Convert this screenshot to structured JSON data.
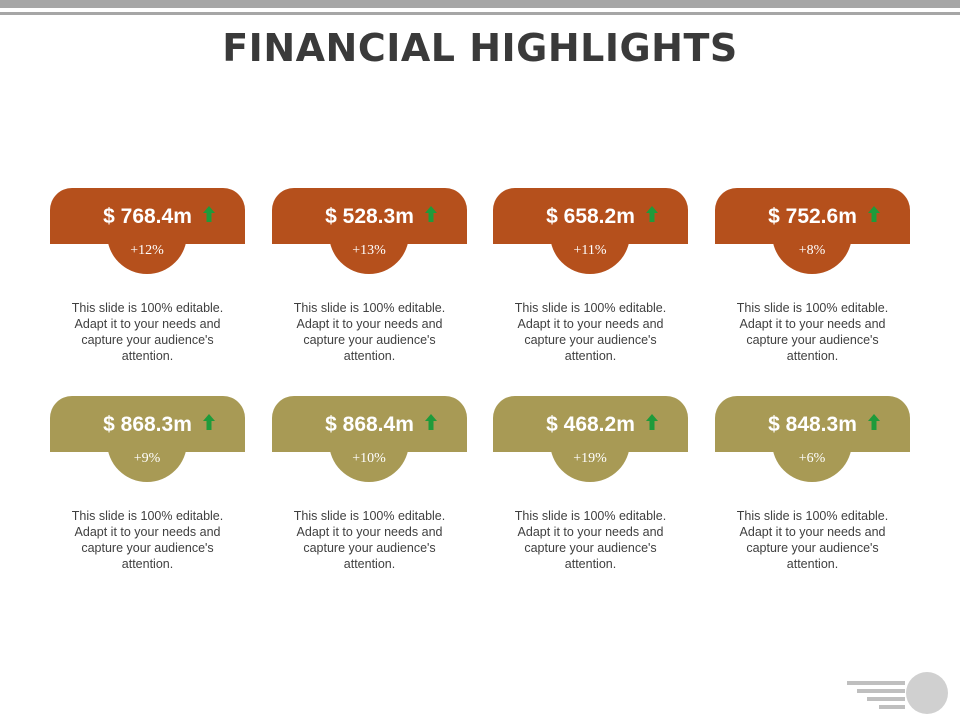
{
  "title": "FINANCIAL HIGHLIGHTS",
  "colors": {
    "rust": "#b5501c",
    "olive": "#a89a55",
    "arrow": "#1e9b3b",
    "gray": "#a6a6a6"
  },
  "cards": [
    {
      "value": "$ 768.4m",
      "change": "+12%",
      "desc": "This slide is 100% editable. Adapt it to your needs and capture your audience's attention."
    },
    {
      "value": "$ 528.3m",
      "change": "+13%",
      "desc": "This slide is 100% editable. Adapt it to your needs and capture your audience's attention."
    },
    {
      "value": "$ 658.2m",
      "change": "+11%",
      "desc": "This slide is 100% editable. Adapt it to your needs and capture your audience's attention."
    },
    {
      "value": "$ 752.6m",
      "change": "+8%",
      "desc": "This slide is 100% editable. Adapt it to your needs and capture your audience's attention."
    },
    {
      "value": "$ 868.3m",
      "change": "+9%",
      "desc": "This slide is 100% editable. Adapt it to your needs and capture your audience's attention."
    },
    {
      "value": "$ 868.4m",
      "change": "+10%",
      "desc": "This slide is 100% editable. Adapt it to your needs and capture your audience's attention."
    },
    {
      "value": "$ 468.2m",
      "change": "+19%",
      "desc": "This slide is 100% editable. Adapt it to your needs and capture your audience's attention."
    },
    {
      "value": "$ 848.3m",
      "change": "+6%",
      "desc": "This slide is 100% editable. Adapt it to your needs and capture your audience's attention."
    }
  ]
}
